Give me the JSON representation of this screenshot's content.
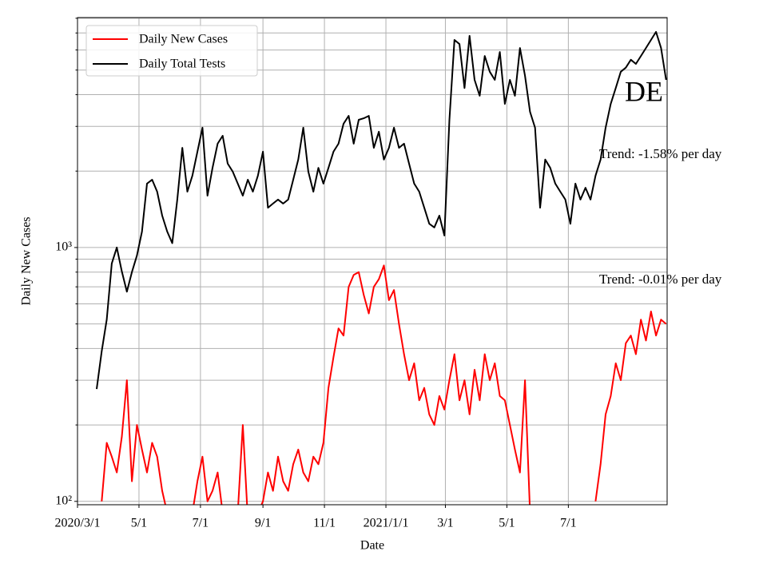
{
  "chart_data": {
    "type": "line",
    "xlabel": "Date",
    "ylabel": "Daily New Cases",
    "log_scale_y": true,
    "grid": true,
    "legend": "upper left",
    "xlim": [
      "2020-03-01",
      "2021-10-07"
    ],
    "ylim": [
      97,
      8050
    ],
    "yticks": [
      {
        "value": 100,
        "label": "10²"
      },
      {
        "value": 1000,
        "label": "10³"
      }
    ],
    "minor_yticks": [
      200,
      300,
      400,
      500,
      600,
      700,
      800,
      900,
      2000,
      3000,
      4000,
      5000,
      6000,
      7000,
      8000
    ],
    "xticks": [
      {
        "value": "2020-03-01",
        "label": "2020/3/1"
      },
      {
        "value": "2020-05-01",
        "label": "5/1"
      },
      {
        "value": "2020-07-01",
        "label": "7/1"
      },
      {
        "value": "2020-09-01",
        "label": "9/1"
      },
      {
        "value": "2020-11-01",
        "label": "11/1"
      },
      {
        "value": "2021-01-01",
        "label": "2021/1/1"
      },
      {
        "value": "2021-03-01",
        "label": "3/1"
      },
      {
        "value": "2021-05-01",
        "label": "5/1"
      },
      {
        "value": "2021-07-01",
        "label": "7/1"
      }
    ],
    "annotations": [
      "DE",
      "Trend: -1.58% per day",
      "Trend: -0.01% per day"
    ],
    "x": [
      "2020-03-20",
      "2020-03-25",
      "2020-03-30",
      "2020-04-04",
      "2020-04-09",
      "2020-04-14",
      "2020-04-19",
      "2020-04-24",
      "2020-04-29",
      "2020-05-04",
      "2020-05-09",
      "2020-05-14",
      "2020-05-19",
      "2020-05-24",
      "2020-05-29",
      "2020-06-03",
      "2020-06-08",
      "2020-06-13",
      "2020-06-18",
      "2020-06-23",
      "2020-06-28",
      "2020-07-03",
      "2020-07-08",
      "2020-07-13",
      "2020-07-18",
      "2020-07-23",
      "2020-07-28",
      "2020-08-02",
      "2020-08-07",
      "2020-08-12",
      "2020-08-17",
      "2020-08-22",
      "2020-08-27",
      "2020-09-01",
      "2020-09-06",
      "2020-09-11",
      "2020-09-16",
      "2020-09-21",
      "2020-09-26",
      "2020-10-01",
      "2020-10-06",
      "2020-10-11",
      "2020-10-16",
      "2020-10-21",
      "2020-10-26",
      "2020-10-31",
      "2020-11-05",
      "2020-11-10",
      "2020-11-15",
      "2020-11-20",
      "2020-11-25",
      "2020-11-30",
      "2020-12-05",
      "2020-12-10",
      "2020-12-15",
      "2020-12-20",
      "2020-12-25",
      "2020-12-30",
      "2021-01-04",
      "2021-01-09",
      "2021-01-14",
      "2021-01-19",
      "2021-01-24",
      "2021-01-29",
      "2021-02-03",
      "2021-02-08",
      "2021-02-13",
      "2021-02-18",
      "2021-02-23",
      "2021-02-28",
      "2021-03-05",
      "2021-03-10",
      "2021-03-15",
      "2021-03-20",
      "2021-03-25",
      "2021-03-30",
      "2021-04-04",
      "2021-04-09",
      "2021-04-14",
      "2021-04-19",
      "2021-04-24",
      "2021-04-29",
      "2021-05-04",
      "2021-05-09",
      "2021-05-14",
      "2021-05-19",
      "2021-05-24",
      "2021-05-29",
      "2021-06-03",
      "2021-06-08",
      "2021-06-13",
      "2021-06-18",
      "2021-06-23",
      "2021-06-28",
      "2021-07-03",
      "2021-07-08",
      "2021-07-13",
      "2021-07-18",
      "2021-07-23",
      "2021-07-28",
      "2021-08-02",
      "2021-08-07",
      "2021-08-12",
      "2021-08-17",
      "2021-08-22",
      "2021-08-27",
      "2021-09-01",
      "2021-09-06",
      "2021-09-11",
      "2021-09-16",
      "2021-09-21",
      "2021-09-26",
      "2021-10-01",
      "2021-10-06"
    ],
    "series": [
      {
        "name": "Daily New Cases",
        "color": "#ff0000",
        "values": [
          null,
          100,
          170,
          150,
          130,
          180,
          300,
          120,
          200,
          160,
          130,
          170,
          150,
          110,
          90,
          70,
          60,
          80,
          70,
          90,
          120,
          150,
          100,
          110,
          130,
          90,
          95,
          80,
          90,
          200,
          85,
          70,
          90,
          100,
          130,
          110,
          150,
          120,
          110,
          140,
          160,
          130,
          120,
          150,
          140,
          170,
          280,
          370,
          480,
          450,
          700,
          780,
          800,
          650,
          550,
          700,
          750,
          850,
          620,
          680,
          500,
          380,
          300,
          350,
          250,
          280,
          220,
          200,
          260,
          230,
          300,
          380,
          250,
          300,
          220,
          330,
          250,
          380,
          300,
          350,
          260,
          250,
          200,
          160,
          130,
          300,
          90,
          60,
          null,
          null,
          null,
          null,
          null,
          null,
          null,
          null,
          null,
          null,
          null,
          100,
          140,
          220,
          260,
          350,
          300,
          420,
          450,
          380,
          520,
          430,
          560,
          450,
          520,
          500
        ]
      },
      {
        "name": "Daily Total Tests",
        "color": "#000000",
        "values": [
          277,
          390,
          520,
          865,
          1000,
          805,
          670,
          800,
          930,
          1155,
          1785,
          1850,
          1660,
          1335,
          1155,
          1040,
          1545,
          2470,
          1660,
          1920,
          2385,
          2965,
          1600,
          2060,
          2565,
          2755,
          2140,
          1990,
          1785,
          1600,
          1850,
          1660,
          1920,
          2385,
          1435,
          1490,
          1545,
          1490,
          1545,
          1850,
          2220,
          2965,
          1990,
          1660,
          2060,
          1785,
          2060,
          2385,
          2565,
          3075,
          3300,
          2565,
          3185,
          3230,
          3300,
          2470,
          2860,
          2220,
          2470,
          2965,
          2470,
          2565,
          2140,
          1785,
          1660,
          1435,
          1240,
          1200,
          1335,
          1115,
          3185,
          6570,
          6330,
          4250,
          6820,
          4575,
          3960,
          5680,
          4925,
          4575,
          5890,
          3680,
          4575,
          3960,
          6110,
          4750,
          3425,
          2965,
          1435,
          2220,
          2060,
          1785,
          1660,
          1545,
          1240,
          1785,
          1545,
          1720,
          1545,
          1920,
          2220,
          2965,
          3680,
          4250,
          4925,
          5110,
          5490,
          5290,
          5680,
          6110,
          6570,
          7070,
          6110,
          4575
        ]
      }
    ]
  }
}
